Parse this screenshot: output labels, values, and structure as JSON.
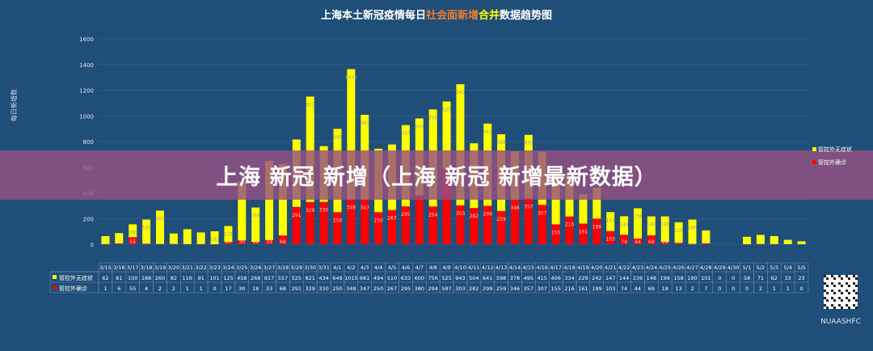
{
  "title": {
    "part1": "上海本土新冠疫情每日",
    "part2": "社会面新增",
    "part3": "合并",
    "part4": "数据趋势图"
  },
  "banner": "上海 新冠 新增（上海 新冠 新增最新数据）",
  "watermark": "NUAASHFC",
  "colors": {
    "background": "#1f4e79",
    "yellow": "#ffff00",
    "red": "#ff0000"
  },
  "chart_data": {
    "type": "bar",
    "stacked": true,
    "title": "上海本土新冠疫情每日社会面新增合并数据趋势图",
    "ylabel": "每日新增数",
    "ylim": [
      0,
      1600
    ],
    "yticks": [
      0,
      200,
      400,
      600,
      800,
      1000,
      1200,
      1400,
      1600
    ],
    "grid": true,
    "legend_position": "right",
    "categories": [
      "3/15",
      "3/16",
      "3/17",
      "3/18",
      "3/19",
      "3/20",
      "3/21",
      "3/22",
      "3/23",
      "3/24",
      "3/25",
      "3/26",
      "3/27",
      "3/28",
      "3/29",
      "3/30",
      "3/31",
      "4/1",
      "4/2",
      "4/3",
      "4/4",
      "4/5",
      "4/6",
      "4/7",
      "4/8",
      "4/9",
      "4/10",
      "4/11",
      "4/12",
      "4/13",
      "4/14",
      "4/15",
      "4/16",
      "4/17",
      "4/18",
      "4/19",
      "4/20",
      "4/21",
      "4/22",
      "4/23",
      "4/24",
      "4/25",
      "4/26",
      "4/27",
      "4/28",
      "4/29",
      "4/30",
      "5/1",
      "5/2",
      "5/3",
      "5/4",
      "5/5"
    ],
    "series": [
      {
        "name": "管控外无症状",
        "color": "#ffff00",
        "values": [
          62,
          81,
          100,
          188,
          260,
          82,
          116,
          91,
          101,
          125,
          458,
          268,
          617,
          557,
          525,
          821,
          434,
          649,
          1015,
          661,
          494,
          510,
          633,
          600,
          756,
          525,
          943,
          504,
          641,
          598,
          378,
          495,
          415,
          406,
          334,
          229,
          242,
          147,
          144,
          236,
          148,
          199,
          158,
          190,
          101,
          0,
          0,
          58,
          71,
          62,
          33,
          23
        ]
      },
      {
        "name": "管控外确诊",
        "color": "#ff0000",
        "values": [
          1,
          6,
          55,
          4,
          2,
          2,
          1,
          1,
          0,
          17,
          30,
          18,
          33,
          68,
          291,
          329,
          330,
          250,
          349,
          347,
          250,
          267,
          295,
          380,
          294,
          587,
          303,
          282,
          299,
          259,
          346,
          357,
          307,
          155,
          216,
          161,
          199,
          103,
          74,
          44,
          69,
          18,
          13,
          2,
          7,
          0,
          0,
          0,
          2,
          1,
          1,
          0
        ]
      }
    ]
  }
}
